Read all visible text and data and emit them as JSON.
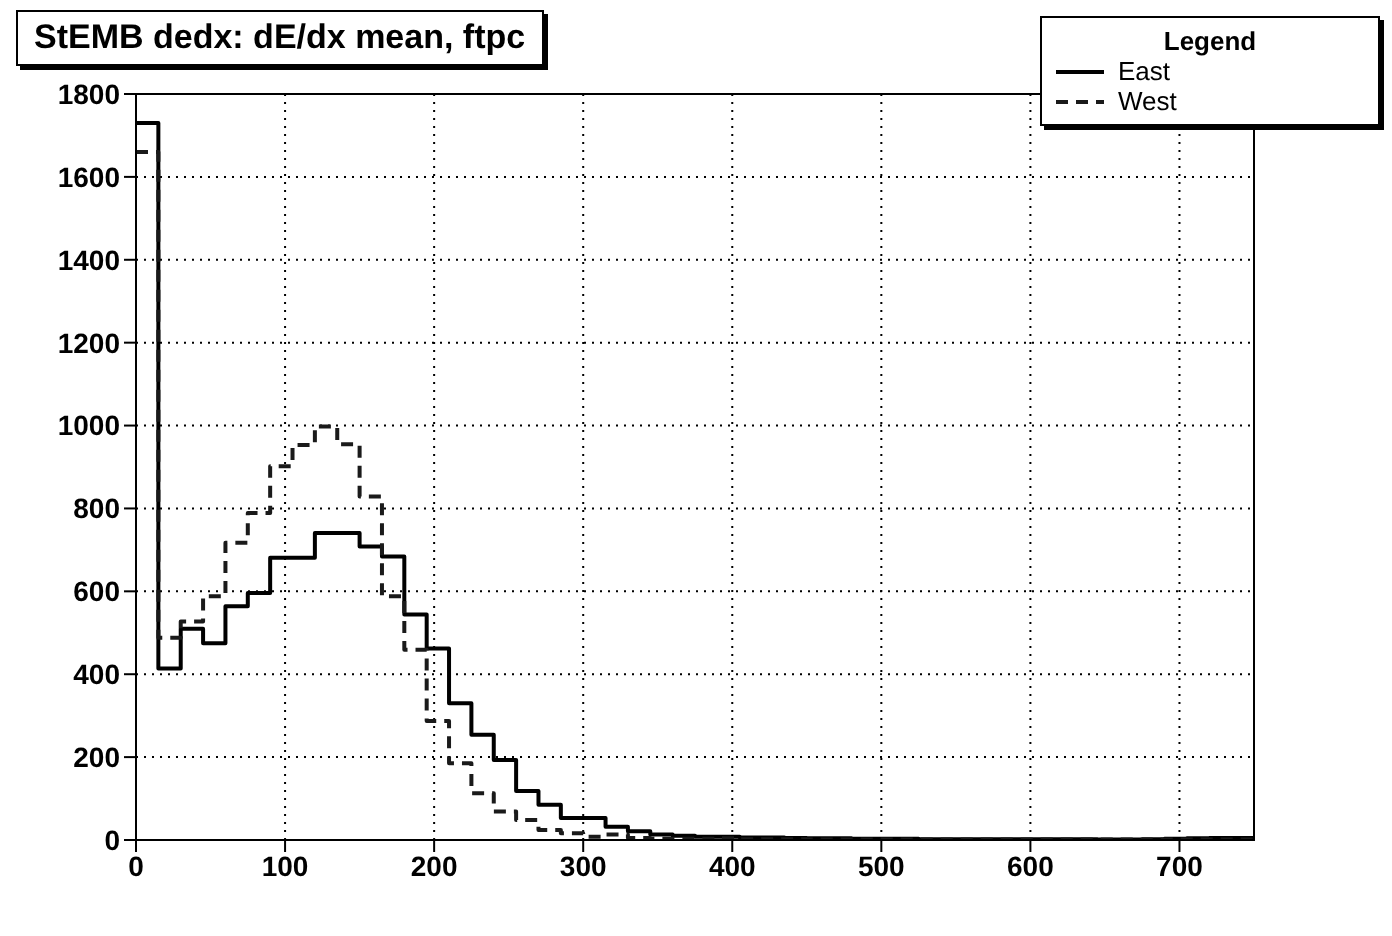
{
  "chart_data": {
    "type": "histogram",
    "title": "StEMB dedx: dE/dx mean, ftpc",
    "legend_title": "Legend",
    "legend": "top right",
    "grid": true,
    "marker": "none",
    "bins": [
      0,
      15,
      30,
      45,
      60,
      75,
      90,
      105,
      120,
      135,
      150,
      165,
      180,
      195,
      210,
      225,
      240,
      255,
      270,
      285,
      300,
      315,
      330,
      345,
      360,
      375,
      390,
      405,
      420,
      435,
      450,
      465,
      480,
      495,
      510,
      525,
      540,
      555,
      570,
      585,
      600,
      615,
      630,
      645,
      660,
      675,
      690,
      705,
      720,
      735,
      750
    ],
    "xlim": [
      0,
      750
    ],
    "xticks": [
      0,
      100,
      200,
      300,
      400,
      500,
      600,
      700
    ],
    "ylim": [
      0,
      1800
    ],
    "yticks": [
      0,
      200,
      400,
      600,
      800,
      1000,
      1200,
      1400,
      1600,
      1800
    ],
    "series": [
      {
        "name": "East",
        "color": "#000000",
        "line_style": "solid",
        "values": [
          1730,
          414,
          510,
          475,
          564,
          596,
          681,
          681,
          741,
          741,
          708,
          684,
          544,
          462,
          330,
          254,
          193,
          118,
          85,
          53,
          53,
          32,
          21,
          13,
          10,
          8,
          8,
          6,
          6,
          5,
          4,
          4,
          3,
          3,
          3,
          2,
          2,
          2,
          2,
          2,
          2,
          2,
          2,
          1,
          1,
          2,
          3,
          4,
          5,
          5
        ]
      },
      {
        "name": "West",
        "color": "#1a1a1a",
        "line_style": "dashed",
        "values": [
          1660,
          488,
          527,
          588,
          717,
          789,
          902,
          953,
          998,
          955,
          829,
          588,
          459,
          287,
          185,
          113,
          69,
          48,
          24,
          16,
          8,
          13,
          5,
          3,
          3,
          3,
          4,
          2,
          2,
          2,
          1,
          1,
          1,
          1,
          1,
          1,
          1,
          1,
          1,
          1,
          1,
          1,
          1,
          1,
          1,
          1,
          1,
          1,
          1,
          1
        ]
      }
    ]
  }
}
